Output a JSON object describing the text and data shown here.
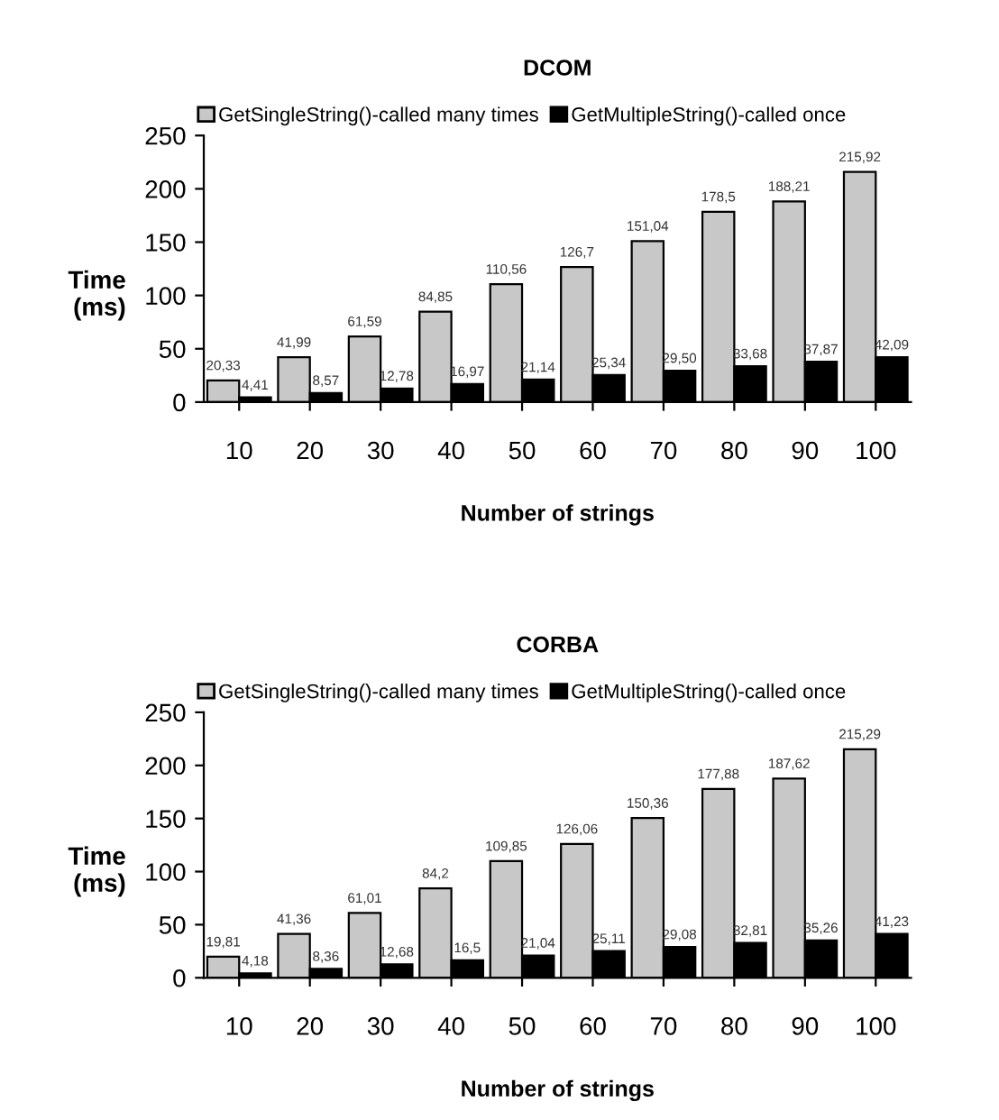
{
  "chart_data": [
    {
      "type": "bar",
      "title": "DCOM",
      "xlabel": "Number of strings",
      "ylabel": "Time\n(ms)",
      "categories": [
        "10",
        "20",
        "30",
        "40",
        "50",
        "60",
        "70",
        "80",
        "90",
        "100"
      ],
      "ylim": [
        0,
        250
      ],
      "yticks": [
        0,
        50,
        100,
        150,
        200,
        250
      ],
      "legend": "top",
      "grid": false,
      "series": [
        {
          "name": "GetSingleString()-called many times",
          "color": "#c8c8c8",
          "values": [
            20.33,
            41.99,
            61.59,
            84.85,
            110.56,
            126.7,
            151.04,
            178.5,
            188.21,
            215.92
          ],
          "value_labels": [
            "20,33",
            "41,99",
            "61,59",
            "84,85",
            "110,56",
            "126,7",
            "151,04",
            "178,5",
            "188,21",
            "215,92"
          ]
        },
        {
          "name": "GetMultipleString()-called once",
          "color": "#000000",
          "values": [
            4.41,
            8.57,
            12.78,
            16.97,
            21.14,
            25.34,
            29.5,
            33.68,
            37.87,
            42.09
          ],
          "value_labels": [
            "4,41",
            "8,57",
            "12,78",
            "16,97",
            "21,14",
            "25,34",
            "29,50",
            "33,68",
            "37,87",
            "42,09"
          ]
        }
      ]
    },
    {
      "type": "bar",
      "title": "CORBA",
      "xlabel": "Number of strings",
      "ylabel": "Time\n(ms)",
      "categories": [
        "10",
        "20",
        "30",
        "40",
        "50",
        "60",
        "70",
        "80",
        "90",
        "100"
      ],
      "ylim": [
        0,
        250
      ],
      "yticks": [
        0,
        50,
        100,
        150,
        200,
        250
      ],
      "legend": "top",
      "grid": false,
      "series": [
        {
          "name": "GetSingleString()-called many times",
          "color": "#c8c8c8",
          "values": [
            19.81,
            41.36,
            61.01,
            84.2,
            109.85,
            126.06,
            150.36,
            177.88,
            187.62,
            215.29
          ],
          "value_labels": [
            "19,81",
            "41,36",
            "61,01",
            "84,2",
            "109,85",
            "126,06",
            "150,36",
            "177,88",
            "187,62",
            "215,29"
          ]
        },
        {
          "name": "GetMultipleString()-called once",
          "color": "#000000",
          "values": [
            4.18,
            8.36,
            12.68,
            16.5,
            21.04,
            25.11,
            29.08,
            32.81,
            35.26,
            41.23
          ],
          "value_labels": [
            "4,18",
            "8,36",
            "12,68",
            "16,5",
            "21,04",
            "25,11",
            "29,08",
            "32,81",
            "35,26",
            "41,23"
          ]
        }
      ]
    }
  ]
}
